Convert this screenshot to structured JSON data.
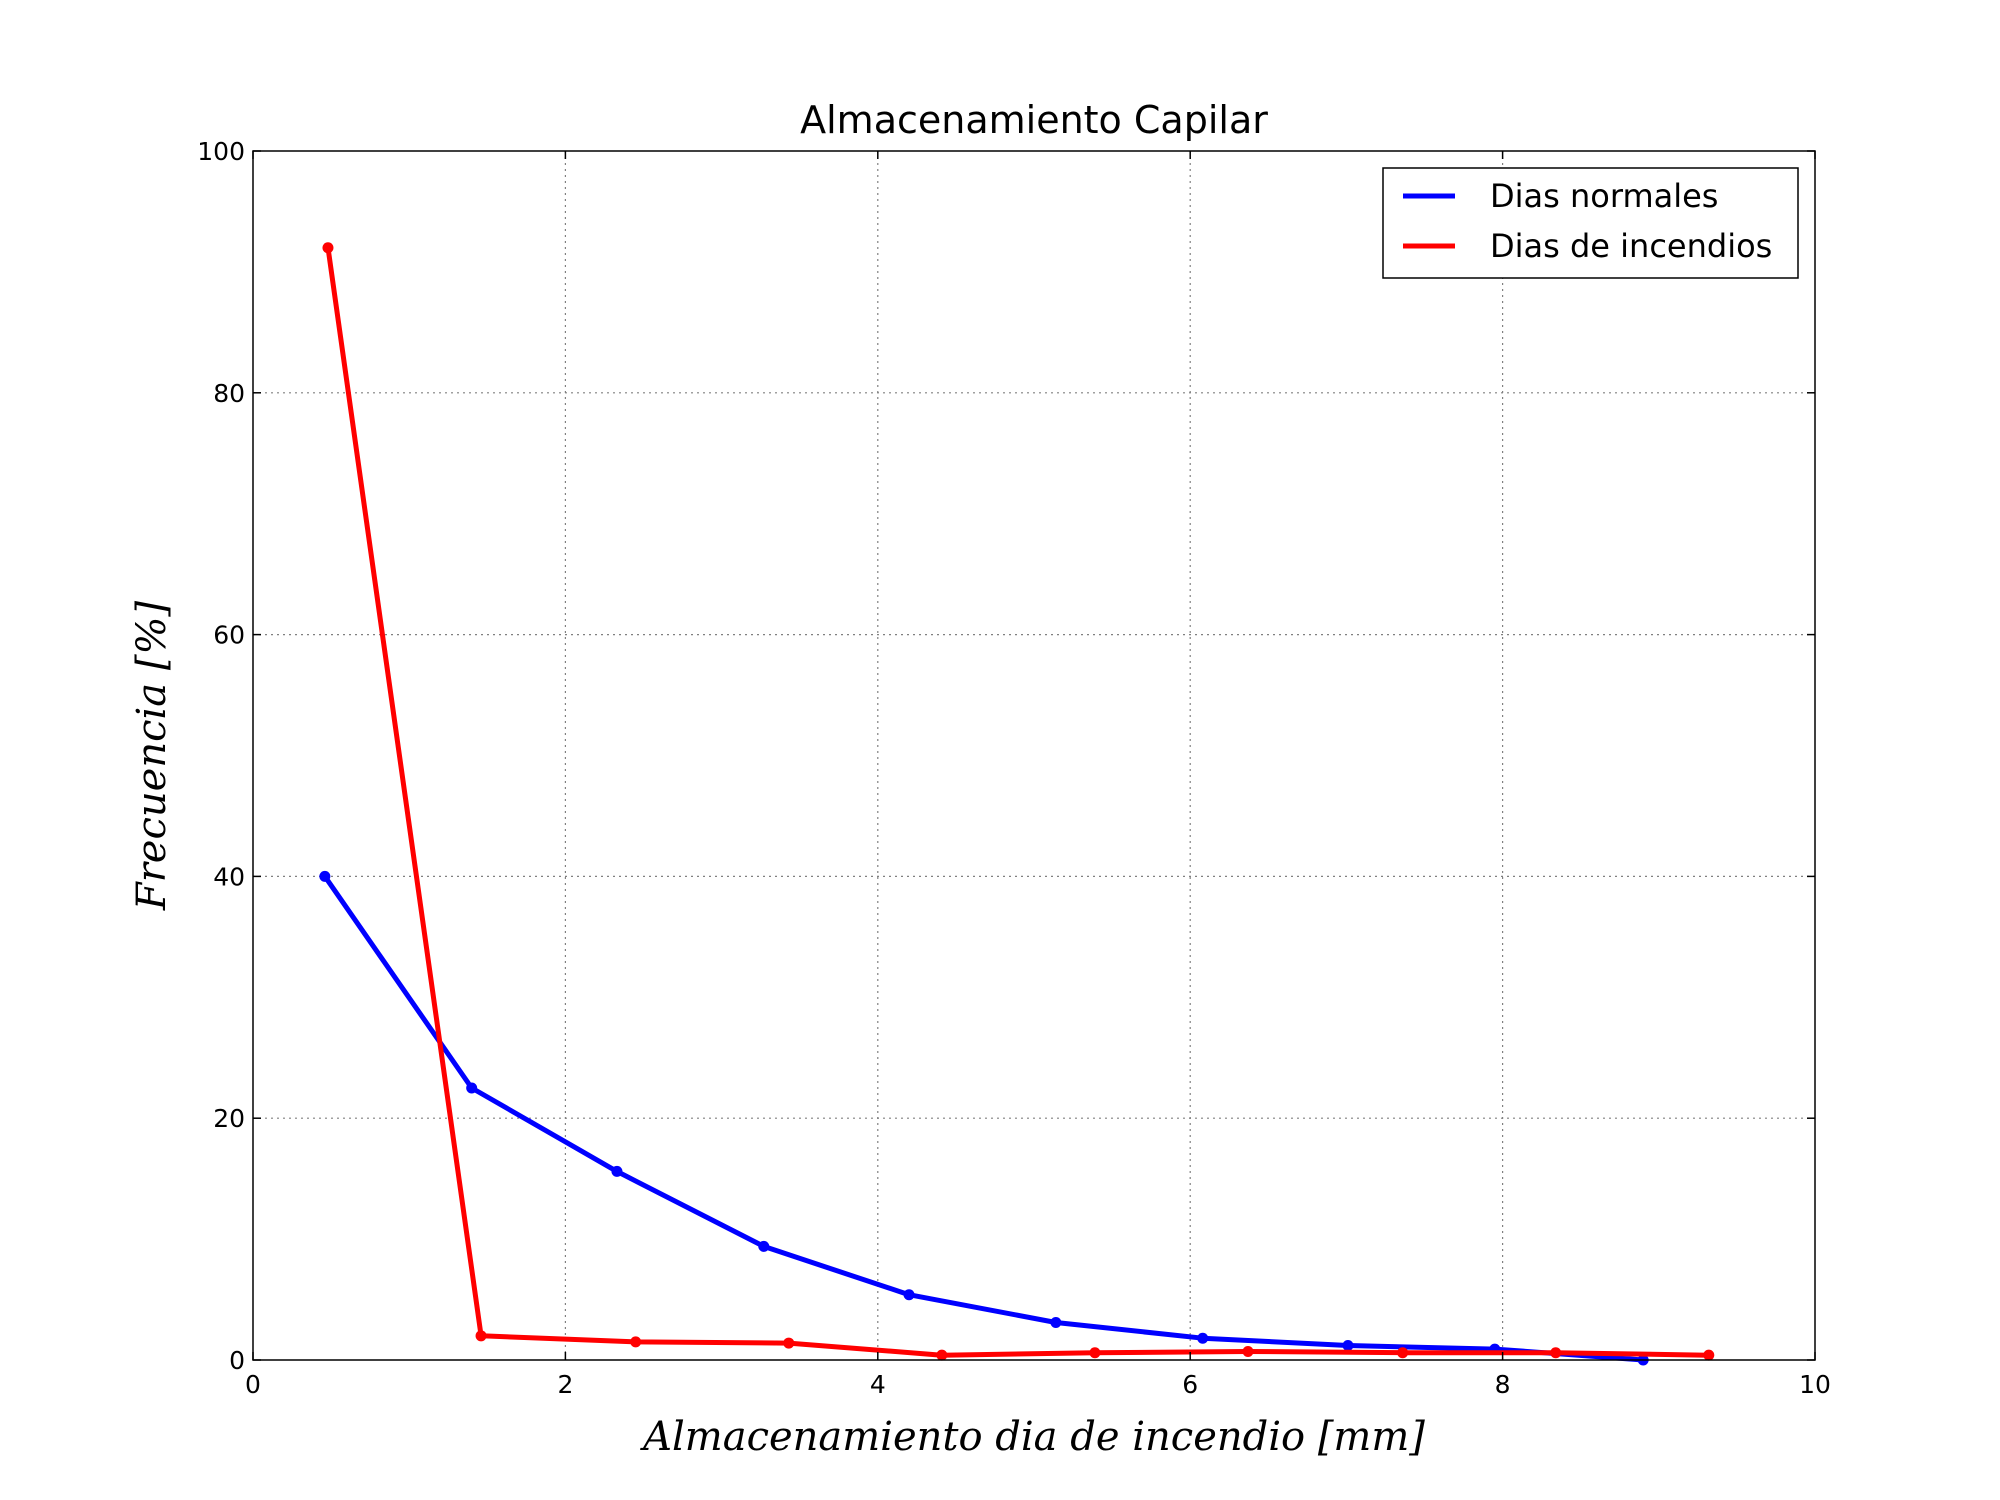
{
  "chart_data": {
    "type": "line",
    "title": "Almacenamiento Capilar",
    "xlabel": "Almacenamiento dia de incendio [mm]",
    "ylabel": "Frecuencia [%]",
    "xlim": [
      0,
      10
    ],
    "ylim": [
      0,
      100
    ],
    "xticks": [
      "0",
      "2",
      "4",
      "6",
      "8",
      "10"
    ],
    "yticks": [
      "0",
      "20",
      "40",
      "60",
      "80",
      "100"
    ],
    "grid": true,
    "legend_position": "top-right",
    "series": [
      {
        "name": "Dias normales",
        "color": "#0000ff",
        "x": [
          0.46,
          1.4,
          2.33,
          3.27,
          4.2,
          5.14,
          6.08,
          7.01,
          7.95,
          8.9
        ],
        "y": [
          40.0,
          22.5,
          15.6,
          9.4,
          5.4,
          3.1,
          1.8,
          1.2,
          0.9,
          0.0
        ]
      },
      {
        "name": "Dias de incendios",
        "color": "#ff0000",
        "x": [
          0.48,
          1.46,
          2.45,
          3.43,
          4.41,
          5.39,
          6.37,
          7.36,
          8.34,
          9.32
        ],
        "y": [
          92.0,
          2.0,
          1.5,
          1.4,
          0.4,
          0.6,
          0.7,
          0.6,
          0.6,
          0.4
        ]
      }
    ]
  }
}
